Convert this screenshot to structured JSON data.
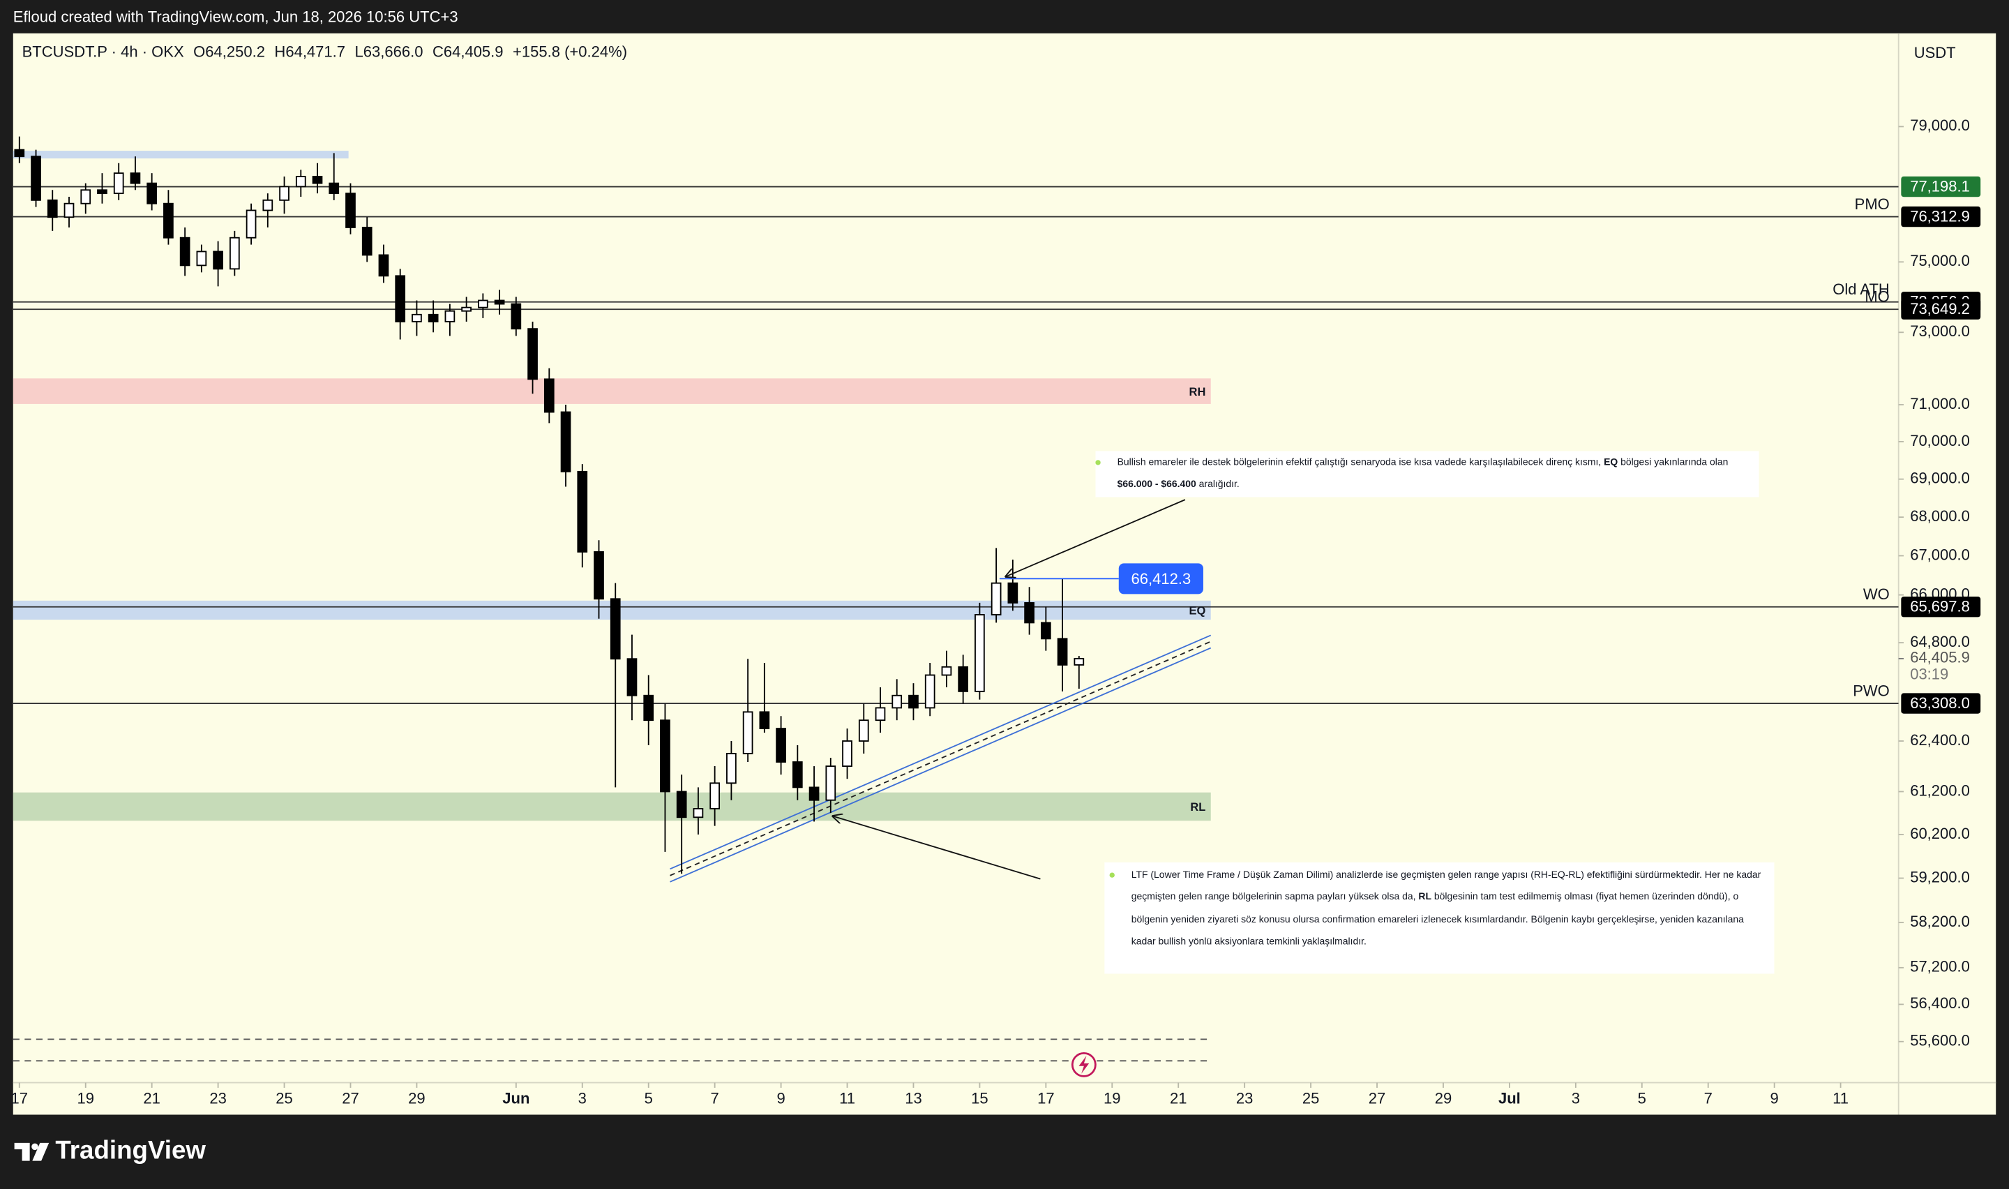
{
  "header_text": "Efloud created with TradingView.com, Jun 18, 2026 10:56 UTC+3",
  "footer_brand": "TradingView",
  "chart_data": {
    "type": "candlestick",
    "title": "BTCUSDT.P · 4h · OKX",
    "legend_values": [
      "O64,250.2",
      "H64,471.7",
      "L63,666.0",
      "C64,405.9",
      "+155.8 (+0.24%)"
    ],
    "y_unit": "USDT",
    "log_scale": true,
    "grid": false,
    "up_color": "#ffffff",
    "down_color": "#000000",
    "xlim": [
      -0.19,
      56.75
    ],
    "ylim": [
      54730,
      81880
    ],
    "xticks": [
      {
        "value": 0,
        "label": "17"
      },
      {
        "value": 2,
        "label": "19"
      },
      {
        "value": 4,
        "label": "21"
      },
      {
        "value": 6,
        "label": "23"
      },
      {
        "value": 8,
        "label": "25"
      },
      {
        "value": 10,
        "label": "27"
      },
      {
        "value": 12,
        "label": "29"
      },
      {
        "value": 15,
        "label": "Jun",
        "bold": true
      },
      {
        "value": 17,
        "label": "3"
      },
      {
        "value": 19,
        "label": "5"
      },
      {
        "value": 21,
        "label": "7"
      },
      {
        "value": 23,
        "label": "9"
      },
      {
        "value": 25,
        "label": "11"
      },
      {
        "value": 27,
        "label": "13"
      },
      {
        "value": 29,
        "label": "15"
      },
      {
        "value": 31,
        "label": "17"
      },
      {
        "value": 33,
        "label": "19"
      },
      {
        "value": 35,
        "label": "21"
      },
      {
        "value": 37,
        "label": "23"
      },
      {
        "value": 39,
        "label": "25"
      },
      {
        "value": 41,
        "label": "27"
      },
      {
        "value": 43,
        "label": "29"
      },
      {
        "value": 45,
        "label": "Jul",
        "bold": true
      },
      {
        "value": 47,
        "label": "3"
      },
      {
        "value": 49,
        "label": "5"
      },
      {
        "value": 51,
        "label": "7"
      },
      {
        "value": 53,
        "label": "9"
      },
      {
        "value": 55,
        "label": "11"
      }
    ],
    "yticks": [
      {
        "value": 79000,
        "label": "79,000.0"
      },
      {
        "value": 75000,
        "label": "75,000.0"
      },
      {
        "value": 73000,
        "label": "73,000.0"
      },
      {
        "value": 71000,
        "label": "71,000.0"
      },
      {
        "value": 70000,
        "label": "70,000.0"
      },
      {
        "value": 69000,
        "label": "69,000.0"
      },
      {
        "value": 68000,
        "label": "68,000.0"
      },
      {
        "value": 67000,
        "label": "67,000.0"
      },
      {
        "value": 66000,
        "label": "66,000.0"
      },
      {
        "value": 64800,
        "label": "64,800.0"
      },
      {
        "value": 62400,
        "label": "62,400.0"
      },
      {
        "value": 61200,
        "label": "61,200.0"
      },
      {
        "value": 60200,
        "label": "60,200.0"
      },
      {
        "value": 59200,
        "label": "59,200.0"
      },
      {
        "value": 58200,
        "label": "58,200.0"
      },
      {
        "value": 57200,
        "label": "57,200.0"
      },
      {
        "value": 56400,
        "label": "56,400.0"
      },
      {
        "value": 55600,
        "label": "55,600.0"
      }
    ],
    "x": [
      0,
      0.5,
      1,
      1.5,
      2,
      2.5,
      3,
      3.5,
      4,
      4.5,
      5,
      5.5,
      6,
      6.5,
      7,
      7.5,
      8,
      8.5,
      9,
      9.5,
      10,
      10.5,
      11,
      11.5,
      12,
      12.5,
      13,
      13.5,
      14,
      14.5,
      15,
      15.5,
      16,
      16.5,
      17,
      17.5,
      18,
      18.5,
      19,
      19.5,
      20,
      20.5,
      21,
      21.5,
      22,
      22.5,
      23,
      23.5,
      24,
      24.5,
      25,
      25.5,
      26,
      26.5,
      27,
      27.5,
      28,
      28.5,
      29,
      29.5,
      30,
      30.5,
      31,
      31.5,
      32
    ],
    "open": [
      78300,
      78100,
      76800,
      76300,
      76700,
      77100,
      77000,
      77600,
      77300,
      76700,
      75700,
      74900,
      75300,
      74800,
      75700,
      76500,
      76800,
      77200,
      77500,
      77300,
      77000,
      76000,
      75200,
      74600,
      73300,
      73500,
      73300,
      73600,
      73700,
      73900,
      73800,
      73100,
      71700,
      70800,
      69200,
      67100,
      65900,
      64400,
      63500,
      62900,
      61200,
      60600,
      60800,
      61400,
      62100,
      63100,
      62700,
      61900,
      61300,
      61000,
      61800,
      62400,
      62900,
      63200,
      63500,
      63200,
      64000,
      64200,
      63600,
      65500,
      66300,
      65800,
      65300,
      64900,
      64250.2
    ],
    "high": [
      78700,
      78300,
      77100,
      76900,
      77300,
      77600,
      77900,
      78100,
      77600,
      77100,
      76000,
      75500,
      75600,
      75900,
      76700,
      77000,
      77500,
      77700,
      77900,
      78200,
      77300,
      76300,
      75500,
      74800,
      73900,
      73900,
      73800,
      74000,
      74100,
      74200,
      74000,
      73300,
      72000,
      71000,
      69400,
      67400,
      66300,
      65000,
      64000,
      63300,
      61600,
      61300,
      61800,
      62400,
      64400,
      64300,
      63000,
      62300,
      61800,
      62000,
      62700,
      63300,
      63700,
      63900,
      63800,
      64300,
      64600,
      64500,
      65800,
      67200,
      66900,
      66200,
      65700,
      66400,
      64471.7
    ],
    "low": [
      77900,
      76600,
      75900,
      76000,
      76400,
      76700,
      76800,
      77100,
      76500,
      75500,
      74600,
      74700,
      74300,
      74600,
      75500,
      76000,
      76400,
      76900,
      77000,
      76800,
      75800,
      75000,
      74400,
      72800,
      72900,
      73000,
      72900,
      73300,
      73400,
      73500,
      72900,
      71300,
      70500,
      68800,
      66700,
      65400,
      61300,
      62900,
      62300,
      59800,
      59300,
      60200,
      60400,
      61000,
      61900,
      62600,
      61600,
      61000,
      60500,
      60700,
      61500,
      62100,
      62600,
      62900,
      62900,
      63000,
      63700,
      63300,
      63400,
      65300,
      65600,
      65000,
      64600,
      63600,
      63666.0
    ],
    "close": [
      78100,
      76800,
      76300,
      76700,
      77100,
      77000,
      77600,
      77300,
      76700,
      75700,
      74900,
      75300,
      74800,
      75700,
      76500,
      76800,
      77200,
      77500,
      77300,
      77000,
      76000,
      75200,
      74600,
      73300,
      73500,
      73300,
      73600,
      73700,
      73900,
      73800,
      73100,
      71700,
      70800,
      69200,
      67100,
      65900,
      64400,
      63500,
      62900,
      61200,
      60600,
      60800,
      61400,
      62100,
      63100,
      62700,
      61900,
      61300,
      61000,
      61800,
      62400,
      62900,
      63200,
      63500,
      63200,
      64000,
      64200,
      63600,
      65500,
      66300,
      65800,
      65300,
      64900,
      64250.2,
      64405.9
    ],
    "levels": [
      {
        "value": 77198.1,
        "value_label": "77,198.1",
        "color": "#1f7a34"
      },
      {
        "name": "PMO",
        "value": 76312.9,
        "value_label": "76,312.9",
        "color": "#000000"
      },
      {
        "name": "Old ATH",
        "value": 73856.0,
        "value_label": "73,856.0",
        "color": "#000000"
      },
      {
        "name": "MO",
        "value": 73649.2,
        "value_label": "73,649.2",
        "color": "#000000"
      },
      {
        "name": "WO",
        "value": 65697.8,
        "value_label": "65,697.8",
        "color": "#000000"
      },
      {
        "name": "PWO",
        "value": 63308.0,
        "value_label": "63,308.0",
        "color": "#000000"
      }
    ],
    "zones": [
      {
        "low": 78040,
        "high": 78270,
        "x0": -0.19,
        "x1": 9.94,
        "color": "#c9d9ee"
      },
      {
        "name": "RH",
        "low": 71020,
        "high": 71720,
        "x0": -0.19,
        "x1": 35.98,
        "color": "#f8cfca"
      },
      {
        "name": "EQ",
        "low": 65375,
        "high": 65855,
        "x0": -0.19,
        "x1": 35.98,
        "color": "#c9d9ee"
      },
      {
        "name": "RL",
        "low": 60520,
        "high": 61180,
        "x0": -0.19,
        "x1": 35.98,
        "color": "#c6dbb8"
      }
    ],
    "channel": [
      {
        "x": [
          19.65,
          35.98
        ],
        "y": [
          59410,
          64985
        ],
        "color": "#3d6fd6"
      },
      {
        "x": [
          19.65,
          35.98
        ],
        "y": [
          59260,
          64830
        ],
        "color": "#222222",
        "dashed": true
      },
      {
        "x": [
          19.65,
          35.98
        ],
        "y": [
          59116,
          64670
        ],
        "color": "#3d6fd6"
      }
    ],
    "price_box": {
      "value": 66412.3,
      "label": "66,412.3",
      "x": [
        29.6,
        33.2
      ],
      "color": "#2962ff"
    },
    "dashed_levels": {
      "values": [
        55650,
        55190
      ],
      "x1": 35.98
    },
    "current_price": {
      "value": 64405.9,
      "label": "64,405.9",
      "countdown": "03:19"
    },
    "annotations": [
      {
        "runs": [
          {
            "text": "Bullish emareler ile destek bölgelerinin efektif çalıştığı senaryoda ise kısa vadede karşılaşılabilecek direnç kısmı, ",
            "bold": false
          },
          {
            "text": "EQ",
            "bold": true
          },
          {
            "text": " bölgesi yakınlarında olan ",
            "bold": false
          },
          {
            "text": "$66.000 - $66.400",
            "bold": true
          },
          {
            "text": " aralığıdır.",
            "bold": false
          }
        ]
      },
      {
        "runs": [
          {
            "text": "LTF (Lower Time Frame / Düşük Zaman Dilimi) analizlerde ise geçmişten gelen range yapısı (RH-EQ-RL) efektifliğini sürdürmektedir. Her ne kadar geçmişten gelen range bölgelerinin sapma payları yüksek olsa da, ",
            "bold": false
          },
          {
            "text": "RL",
            "bold": true
          },
          {
            "text": " bölgesinin tam test edilmemiş olması (fiyat hemen üzerinden döndü), o bölgenin yeniden ziyareti söz konusu olursa confirmation emareleri izlenecek kısımlardandır. Bölgenin kaybı gerçekleşirse, yeniden kazanılana kadar bullish yönlü aksiyonlara temkinli yaklaşılmalıdır.",
            "bold": false
          }
        ]
      }
    ]
  }
}
